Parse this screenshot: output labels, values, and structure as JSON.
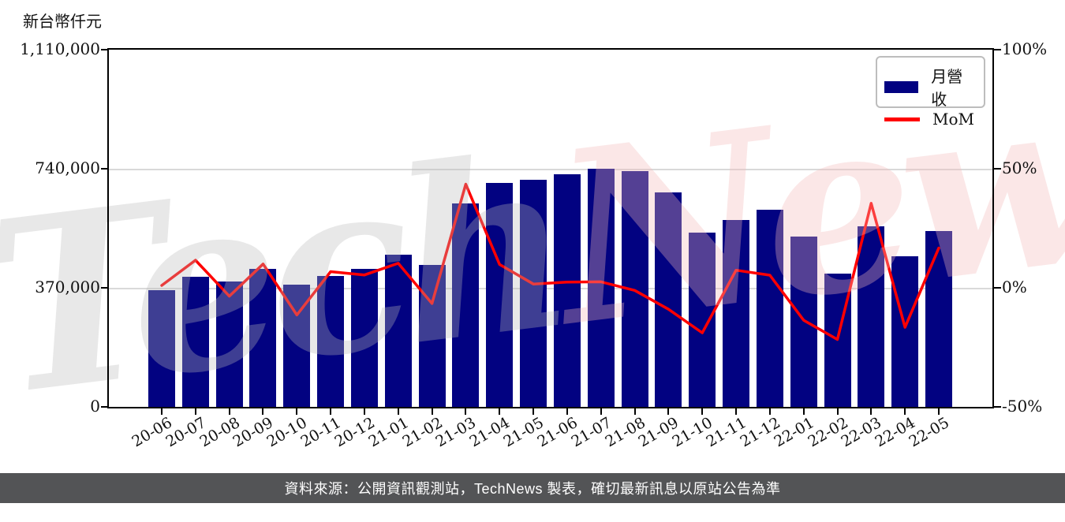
{
  "unit_label": "新台幣仟元",
  "watermark": {
    "part1": "Tech",
    "part2": "News"
  },
  "legend": {
    "items": [
      {
        "label": "月營收",
        "swatch": "bar"
      },
      {
        "label": "MoM",
        "swatch": "line"
      }
    ]
  },
  "footer": {
    "text": "資料來源：公開資訊觀測站，TechNews 製表，確切最新訊息以原站公告為準"
  },
  "chart_data": {
    "type": "bar",
    "subtype": "bar+line combo (monthly revenue bars, MoM % line)",
    "categories": [
      "20-06",
      "20-07",
      "20-08",
      "20-09",
      "20-10",
      "20-11",
      "20-12",
      "21-01",
      "21-02",
      "21-03",
      "21-04",
      "21-05",
      "21-06",
      "21-07",
      "21-08",
      "21-09",
      "21-10",
      "21-11",
      "21-12",
      "22-01",
      "22-02",
      "22-03",
      "22-04",
      "22-05"
    ],
    "series": [
      {
        "name": "月營收",
        "type": "bar",
        "axis": "left",
        "unit": "新台幣仟元",
        "color": "#020281",
        "values": [
          362000,
          404000,
          390000,
          429000,
          380000,
          406000,
          428000,
          472000,
          441000,
          633000,
          695000,
          706000,
          723000,
          741000,
          733000,
          667000,
          541000,
          581000,
          612000,
          529000,
          414000,
          561000,
          468000,
          546000
        ]
      },
      {
        "name": "MoM",
        "type": "line",
        "axis": "right",
        "unit": "%",
        "color": "#ff0000",
        "values": [
          1.0,
          11.6,
          -3.5,
          10.0,
          -11.4,
          6.8,
          5.4,
          10.3,
          -6.6,
          43.5,
          9.8,
          1.6,
          2.4,
          2.5,
          -1.1,
          -9.0,
          -18.9,
          7.4,
          5.3,
          -13.6,
          -21.7,
          35.5,
          -16.6,
          16.7
        ]
      }
    ],
    "left_axis": {
      "title": "新台幣仟元",
      "min": 0,
      "max": 1110000,
      "ticks": [
        {
          "label": "0",
          "value": 0
        },
        {
          "label": "370,000",
          "value": 370000
        },
        {
          "label": "740,000",
          "value": 740000
        },
        {
          "label": "1,110,000",
          "value": 1110000
        }
      ]
    },
    "right_axis": {
      "min": -50,
      "max": 100,
      "ticks": [
        {
          "label": "-50%",
          "value": -50
        },
        {
          "label": "0%",
          "value": 0
        },
        {
          "label": "50%",
          "value": 50
        },
        {
          "label": "100%",
          "value": 100
        }
      ]
    },
    "grid": "horizontal light-gray gridlines at interior left-axis ticks",
    "legend_position": "top-right inside plot",
    "colors": {
      "bar": "#020281",
      "line": "#ff0000",
      "grid": "#d9d9d9",
      "spine": "#000000",
      "footer_bg": "#535456",
      "watermark_gray": "#e9e9e9",
      "watermark_pink": "#fbe9e9"
    }
  }
}
